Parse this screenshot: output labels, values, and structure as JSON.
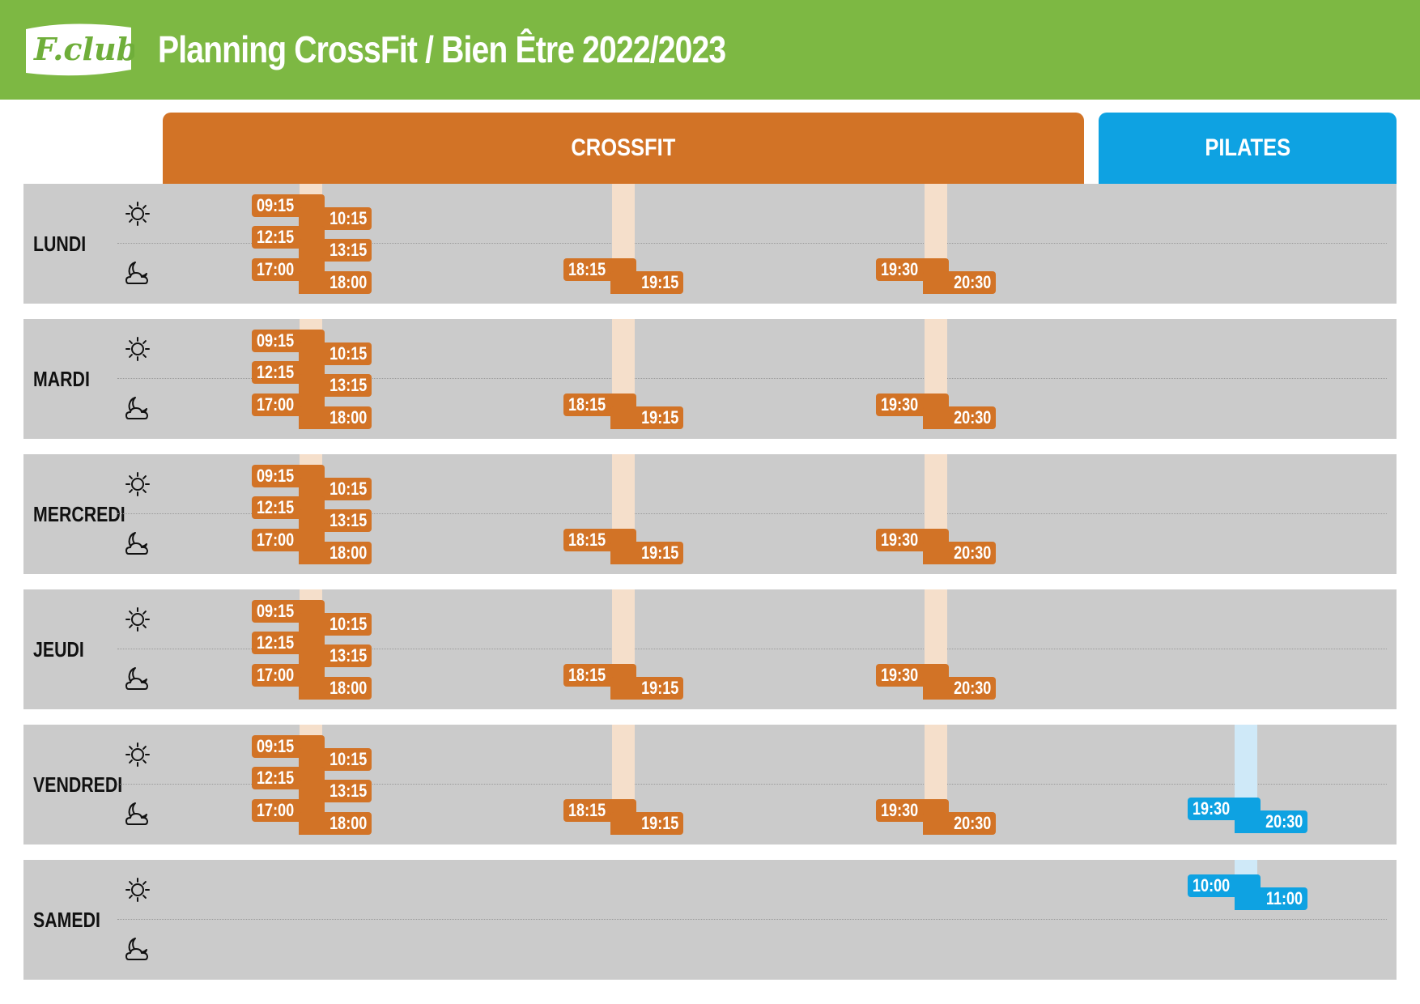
{
  "header": {
    "logo_text": "F.club",
    "title": "Planning CrossFit / Bien Être 2022/2023",
    "bg_color": "#7db843"
  },
  "columns": [
    {
      "label": "CROSSFIT",
      "color": "#d27326"
    },
    {
      "label": "PILATES",
      "color": "#0ea2e2"
    }
  ],
  "icons": {
    "morning": "sun-icon",
    "evening": "moon-cloud-icon"
  },
  "days": [
    {
      "name": "LUNDI",
      "slots": [
        {
          "start": "09:15",
          "end": "10:15",
          "type": "crossfit"
        },
        {
          "start": "12:15",
          "end": "13:15",
          "type": "crossfit"
        },
        {
          "start": "17:00",
          "end": "18:00",
          "type": "crossfit"
        },
        {
          "start": "18:15",
          "end": "19:15",
          "type": "crossfit"
        },
        {
          "start": "19:30",
          "end": "20:30",
          "type": "crossfit"
        }
      ]
    },
    {
      "name": "MARDI",
      "slots": [
        {
          "start": "09:15",
          "end": "10:15",
          "type": "crossfit"
        },
        {
          "start": "12:15",
          "end": "13:15",
          "type": "crossfit"
        },
        {
          "start": "17:00",
          "end": "18:00",
          "type": "crossfit"
        },
        {
          "start": "18:15",
          "end": "19:15",
          "type": "crossfit"
        },
        {
          "start": "19:30",
          "end": "20:30",
          "type": "crossfit"
        }
      ]
    },
    {
      "name": "MERCREDI",
      "slots": [
        {
          "start": "09:15",
          "end": "10:15",
          "type": "crossfit"
        },
        {
          "start": "12:15",
          "end": "13:15",
          "type": "crossfit"
        },
        {
          "start": "17:00",
          "end": "18:00",
          "type": "crossfit"
        },
        {
          "start": "18:15",
          "end": "19:15",
          "type": "crossfit"
        },
        {
          "start": "19:30",
          "end": "20:30",
          "type": "crossfit"
        }
      ]
    },
    {
      "name": "JEUDI",
      "slots": [
        {
          "start": "09:15",
          "end": "10:15",
          "type": "crossfit"
        },
        {
          "start": "12:15",
          "end": "13:15",
          "type": "crossfit"
        },
        {
          "start": "17:00",
          "end": "18:00",
          "type": "crossfit"
        },
        {
          "start": "18:15",
          "end": "19:15",
          "type": "crossfit"
        },
        {
          "start": "19:30",
          "end": "20:30",
          "type": "crossfit"
        }
      ]
    },
    {
      "name": "VENDREDI",
      "slots": [
        {
          "start": "09:15",
          "end": "10:15",
          "type": "crossfit"
        },
        {
          "start": "12:15",
          "end": "13:15",
          "type": "crossfit"
        },
        {
          "start": "17:00",
          "end": "18:00",
          "type": "crossfit"
        },
        {
          "start": "18:15",
          "end": "19:15",
          "type": "crossfit"
        },
        {
          "start": "19:30",
          "end": "20:30",
          "type": "crossfit"
        },
        {
          "start": "19:30",
          "end": "20:30",
          "type": "pilates"
        }
      ]
    },
    {
      "name": "SAMEDI",
      "slots": [
        {
          "start": "10:00",
          "end": "11:00",
          "type": "pilates"
        }
      ]
    }
  ]
}
